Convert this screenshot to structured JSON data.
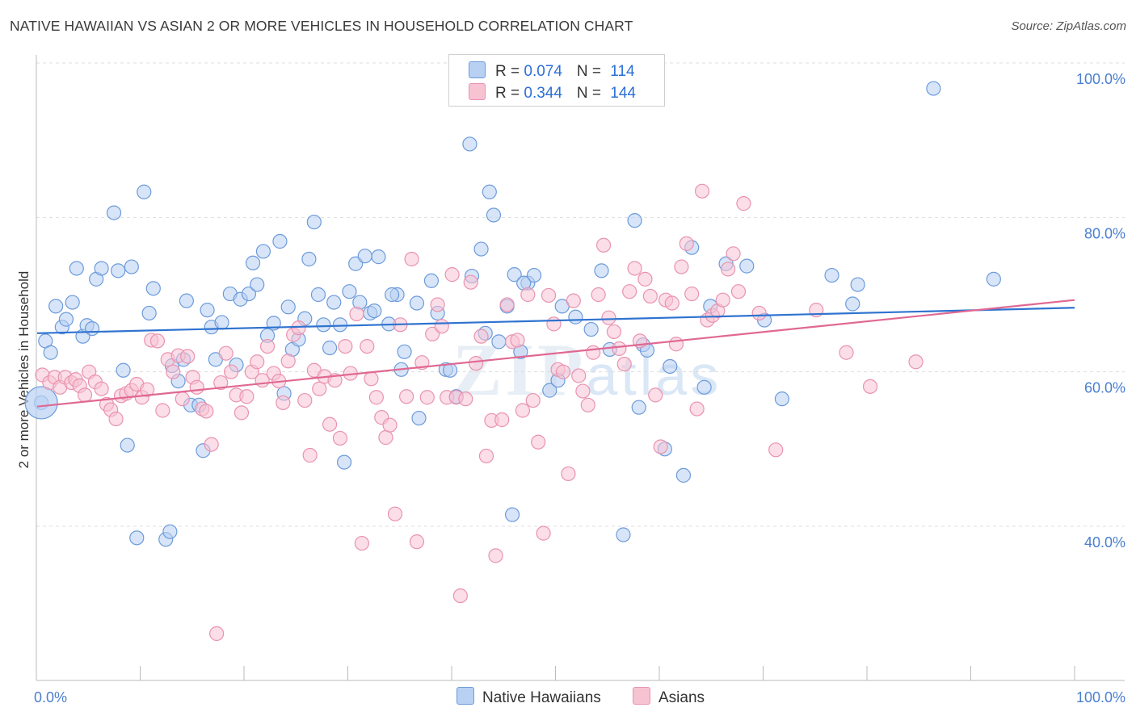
{
  "title": "NATIVE HAWAIIAN VS ASIAN 2 OR MORE VEHICLES IN HOUSEHOLD CORRELATION CHART",
  "source": "Source: ZipAtlas.com",
  "watermark": {
    "main": "ZIP",
    "sub": "atlas"
  },
  "legend": {
    "series": [
      {
        "r_label": "R = ",
        "r_value": "0.074",
        "n_label": "N = ",
        "n_value": "114"
      },
      {
        "r_label": "R = ",
        "r_value": "0.344",
        "n_label": "N = ",
        "n_value": "144"
      }
    ]
  },
  "bottom_legend": [
    "Native Hawaiians",
    "Asians"
  ],
  "colors": {
    "blue_fill": "#b8d0f2",
    "blue_stroke": "#6c9bdb",
    "blue_line": "#2f73d0",
    "pink_fill": "#f7c3d3",
    "pink_stroke": "#e993b0",
    "pink_line": "#e06892",
    "tick_text": "#4a7fd0",
    "grid": "#dddddd"
  },
  "chart_data": {
    "type": "scatter",
    "title": "NATIVE HAWAIIAN VS ASIAN 2 OR MORE VEHICLES IN HOUSEHOLD CORRELATION CHART",
    "xlabel": "",
    "ylabel": "2 or more Vehicles in Household",
    "xlim": [
      0,
      100
    ],
    "ylim": [
      18,
      101
    ],
    "x_tick_labels": [
      "0.0%",
      "100.0%"
    ],
    "y_ticks": [
      40,
      60,
      80,
      100
    ],
    "y_tick_labels": [
      "40.0%",
      "60.0%",
      "80.0%",
      "100.0%"
    ],
    "grid": true,
    "legend_position": "top-center",
    "series": [
      {
        "name": "Native Hawaiians",
        "r": 0.074,
        "n": 114,
        "trend": {
          "x": [
            0,
            100
          ],
          "y": [
            65.0,
            68.3
          ]
        },
        "points": [
          [
            0.4,
            56.0
          ],
          [
            0.8,
            64.0
          ],
          [
            1.3,
            62.5
          ],
          [
            1.8,
            68.5
          ],
          [
            2.4,
            65.8
          ],
          [
            2.8,
            66.8
          ],
          [
            3.4,
            69.0
          ],
          [
            3.8,
            73.4
          ],
          [
            4.4,
            64.6
          ],
          [
            4.8,
            66.0
          ],
          [
            5.3,
            65.6
          ],
          [
            5.7,
            72.0
          ],
          [
            6.2,
            73.4
          ],
          [
            7.4,
            80.6
          ],
          [
            7.8,
            73.1
          ],
          [
            8.3,
            60.2
          ],
          [
            8.7,
            50.5
          ],
          [
            9.1,
            73.6
          ],
          [
            9.6,
            38.5
          ],
          [
            10.3,
            83.3
          ],
          [
            10.8,
            67.6
          ],
          [
            11.2,
            70.8
          ],
          [
            12.4,
            38.3
          ],
          [
            12.8,
            39.3
          ],
          [
            13.0,
            60.8
          ],
          [
            13.6,
            58.8
          ],
          [
            14.1,
            61.6
          ],
          [
            14.4,
            69.2
          ],
          [
            14.8,
            55.7
          ],
          [
            15.6,
            55.7
          ],
          [
            16.0,
            49.8
          ],
          [
            16.4,
            68.0
          ],
          [
            16.8,
            65.8
          ],
          [
            17.2,
            61.6
          ],
          [
            17.8,
            66.4
          ],
          [
            18.6,
            70.1
          ],
          [
            19.2,
            60.9
          ],
          [
            19.6,
            69.4
          ],
          [
            20.4,
            70.1
          ],
          [
            20.8,
            74.1
          ],
          [
            21.2,
            71.3
          ],
          [
            21.8,
            75.6
          ],
          [
            22.2,
            64.7
          ],
          [
            22.8,
            66.3
          ],
          [
            23.4,
            76.9
          ],
          [
            23.8,
            57.2
          ],
          [
            24.2,
            68.4
          ],
          [
            24.6,
            62.9
          ],
          [
            25.2,
            64.2
          ],
          [
            25.8,
            66.9
          ],
          [
            26.2,
            74.6
          ],
          [
            26.7,
            79.4
          ],
          [
            27.1,
            70.0
          ],
          [
            27.6,
            66.1
          ],
          [
            28.2,
            63.1
          ],
          [
            28.6,
            69.0
          ],
          [
            29.2,
            66.1
          ],
          [
            29.6,
            48.3
          ],
          [
            30.1,
            70.4
          ],
          [
            30.7,
            74.0
          ],
          [
            31.1,
            69.0
          ],
          [
            31.6,
            75.0
          ],
          [
            32.1,
            67.6
          ],
          [
            32.5,
            67.9
          ],
          [
            32.9,
            74.9
          ],
          [
            33.9,
            66.2
          ],
          [
            34.7,
            70.0
          ],
          [
            35.1,
            60.3
          ],
          [
            35.4,
            62.6
          ],
          [
            36.6,
            68.9
          ],
          [
            36.8,
            54.0
          ],
          [
            38.0,
            71.8
          ],
          [
            38.6,
            67.6
          ],
          [
            39.4,
            60.3
          ],
          [
            39.8,
            60.2
          ],
          [
            40.4,
            56.8
          ],
          [
            41.7,
            89.5
          ],
          [
            41.9,
            72.4
          ],
          [
            42.8,
            75.9
          ],
          [
            43.2,
            65.0
          ],
          [
            43.6,
            83.3
          ],
          [
            44.0,
            80.3
          ],
          [
            44.5,
            63.9
          ],
          [
            45.3,
            68.5
          ],
          [
            45.8,
            41.5
          ],
          [
            46.0,
            72.6
          ],
          [
            46.6,
            62.6
          ],
          [
            47.3,
            71.5
          ],
          [
            47.9,
            72.5
          ],
          [
            49.4,
            57.6
          ],
          [
            50.2,
            58.9
          ],
          [
            50.6,
            68.5
          ],
          [
            51.9,
            67.1
          ],
          [
            53.4,
            65.5
          ],
          [
            54.4,
            73.1
          ],
          [
            55.2,
            62.9
          ],
          [
            56.5,
            38.9
          ],
          [
            57.6,
            79.6
          ],
          [
            58.0,
            55.4
          ],
          [
            58.4,
            63.5
          ],
          [
            58.8,
            62.8
          ],
          [
            60.5,
            50.0
          ],
          [
            61.0,
            60.7
          ],
          [
            62.3,
            46.6
          ],
          [
            63.1,
            76.1
          ],
          [
            64.3,
            58.0
          ],
          [
            66.4,
            74.0
          ],
          [
            68.4,
            73.7
          ],
          [
            70.1,
            66.7
          ],
          [
            71.8,
            56.5
          ],
          [
            76.6,
            72.5
          ],
          [
            78.6,
            68.8
          ],
          [
            79.1,
            71.3
          ],
          [
            86.4,
            96.7
          ],
          [
            92.2,
            72.0
          ],
          [
            46.9,
            71.5
          ],
          [
            34.2,
            70.0
          ],
          [
            64.9,
            68.5
          ]
        ]
      },
      {
        "name": "Asians",
        "r": 0.344,
        "n": 144,
        "trend": {
          "x": [
            0,
            100
          ],
          "y": [
            55.5,
            69.3
          ]
        },
        "points": [
          [
            0.5,
            59.6
          ],
          [
            1.2,
            58.6
          ],
          [
            1.7,
            59.3
          ],
          [
            2.2,
            58.0
          ],
          [
            2.7,
            59.3
          ],
          [
            3.3,
            58.6
          ],
          [
            3.7,
            59.0
          ],
          [
            4.1,
            58.2
          ],
          [
            4.6,
            57.0
          ],
          [
            5.0,
            60.0
          ],
          [
            5.6,
            58.7
          ],
          [
            6.2,
            57.8
          ],
          [
            6.7,
            55.8
          ],
          [
            7.1,
            55.1
          ],
          [
            7.6,
            53.9
          ],
          [
            8.1,
            56.9
          ],
          [
            8.6,
            57.2
          ],
          [
            9.1,
            57.6
          ],
          [
            9.6,
            58.4
          ],
          [
            10.1,
            56.7
          ],
          [
            10.6,
            57.7
          ],
          [
            11.0,
            64.1
          ],
          [
            11.6,
            64.0
          ],
          [
            12.1,
            55.0
          ],
          [
            12.6,
            61.6
          ],
          [
            13.1,
            60.0
          ],
          [
            13.6,
            62.1
          ],
          [
            14.0,
            56.5
          ],
          [
            14.5,
            62.0
          ],
          [
            15.0,
            59.3
          ],
          [
            15.4,
            58.0
          ],
          [
            15.9,
            55.2
          ],
          [
            16.3,
            54.9
          ],
          [
            16.8,
            50.6
          ],
          [
            17.3,
            26.1
          ],
          [
            17.7,
            58.6
          ],
          [
            18.2,
            62.4
          ],
          [
            18.7,
            60.0
          ],
          [
            19.2,
            57.0
          ],
          [
            19.7,
            54.7
          ],
          [
            20.2,
            56.8
          ],
          [
            20.7,
            60.0
          ],
          [
            21.2,
            61.3
          ],
          [
            21.7,
            58.9
          ],
          [
            22.2,
            63.3
          ],
          [
            22.8,
            59.8
          ],
          [
            23.3,
            58.8
          ],
          [
            23.7,
            56.0
          ],
          [
            24.2,
            61.4
          ],
          [
            24.7,
            64.8
          ],
          [
            25.2,
            65.7
          ],
          [
            25.8,
            56.3
          ],
          [
            26.3,
            49.2
          ],
          [
            26.7,
            60.2
          ],
          [
            27.2,
            57.8
          ],
          [
            27.7,
            59.4
          ],
          [
            28.2,
            53.2
          ],
          [
            28.7,
            58.9
          ],
          [
            29.2,
            51.4
          ],
          [
            29.7,
            63.3
          ],
          [
            30.2,
            59.8
          ],
          [
            30.8,
            67.5
          ],
          [
            31.3,
            37.8
          ],
          [
            31.8,
            63.3
          ],
          [
            32.2,
            59.1
          ],
          [
            32.7,
            56.7
          ],
          [
            33.2,
            54.1
          ],
          [
            33.6,
            51.5
          ],
          [
            34.0,
            53.1
          ],
          [
            34.5,
            41.6
          ],
          [
            35.0,
            66.1
          ],
          [
            35.6,
            56.8
          ],
          [
            36.1,
            74.6
          ],
          [
            36.6,
            38.0
          ],
          [
            37.1,
            61.2
          ],
          [
            37.6,
            56.7
          ],
          [
            38.1,
            64.9
          ],
          [
            38.6,
            68.7
          ],
          [
            39.0,
            65.9
          ],
          [
            39.5,
            56.7
          ],
          [
            40.0,
            72.6
          ],
          [
            40.4,
            56.7
          ],
          [
            40.8,
            31.0
          ],
          [
            41.3,
            56.5
          ],
          [
            41.8,
            71.6
          ],
          [
            42.3,
            61.1
          ],
          [
            42.8,
            64.6
          ],
          [
            43.3,
            49.1
          ],
          [
            43.8,
            53.7
          ],
          [
            44.2,
            36.2
          ],
          [
            44.8,
            53.8
          ],
          [
            45.3,
            68.7
          ],
          [
            45.8,
            63.9
          ],
          [
            46.3,
            64.1
          ],
          [
            46.8,
            55.0
          ],
          [
            47.3,
            70.0
          ],
          [
            47.8,
            56.3
          ],
          [
            48.3,
            50.9
          ],
          [
            48.8,
            39.1
          ],
          [
            49.3,
            69.9
          ],
          [
            49.8,
            66.2
          ],
          [
            50.2,
            60.3
          ],
          [
            50.7,
            60.0
          ],
          [
            51.2,
            46.8
          ],
          [
            51.7,
            69.2
          ],
          [
            52.2,
            59.5
          ],
          [
            52.6,
            57.5
          ],
          [
            53.1,
            55.7
          ],
          [
            53.6,
            62.5
          ],
          [
            54.1,
            70.0
          ],
          [
            54.6,
            76.4
          ],
          [
            55.1,
            67.0
          ],
          [
            55.6,
            65.2
          ],
          [
            56.1,
            63.0
          ],
          [
            56.6,
            61.0
          ],
          [
            57.1,
            70.4
          ],
          [
            57.6,
            73.4
          ],
          [
            58.1,
            64.0
          ],
          [
            58.6,
            72.0
          ],
          [
            59.1,
            69.8
          ],
          [
            59.6,
            57.0
          ],
          [
            60.1,
            50.3
          ],
          [
            60.6,
            69.3
          ],
          [
            61.2,
            68.9
          ],
          [
            61.6,
            63.6
          ],
          [
            62.1,
            73.6
          ],
          [
            62.6,
            76.6
          ],
          [
            63.1,
            70.1
          ],
          [
            63.6,
            55.2
          ],
          [
            64.1,
            83.4
          ],
          [
            64.6,
            66.7
          ],
          [
            65.1,
            67.3
          ],
          [
            65.6,
            67.9
          ],
          [
            66.1,
            69.3
          ],
          [
            66.6,
            73.3
          ],
          [
            67.1,
            75.3
          ],
          [
            67.6,
            70.4
          ],
          [
            68.1,
            81.8
          ],
          [
            69.6,
            67.6
          ],
          [
            71.2,
            49.9
          ],
          [
            75.1,
            68.0
          ],
          [
            78.0,
            62.5
          ],
          [
            80.3,
            58.1
          ],
          [
            84.7,
            61.3
          ]
        ]
      }
    ]
  }
}
